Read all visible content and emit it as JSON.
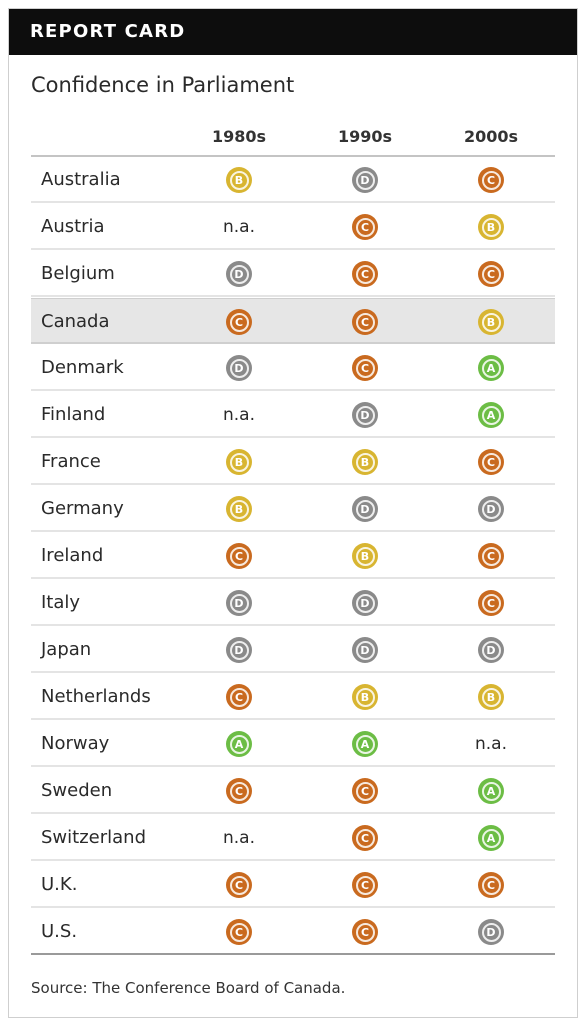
{
  "header": {
    "title": "REPORT CARD"
  },
  "subtitle": "Confidence in Parliament",
  "columns": [
    "1980s",
    "1990s",
    "2000s"
  ],
  "grade_colors": {
    "A": "#6cbd45",
    "B": "#d8b531",
    "C": "#c96a1f",
    "D": "#8a8a8a"
  },
  "highlight_row": "Canada",
  "rows": [
    {
      "country": "Australia",
      "grades": [
        "B",
        "D",
        "C"
      ]
    },
    {
      "country": "Austria",
      "grades": [
        "n.a.",
        "C",
        "B"
      ]
    },
    {
      "country": "Belgium",
      "grades": [
        "D",
        "C",
        "C"
      ]
    },
    {
      "country": "Canada",
      "grades": [
        "C",
        "C",
        "B"
      ]
    },
    {
      "country": "Denmark",
      "grades": [
        "D",
        "C",
        "A"
      ]
    },
    {
      "country": "Finland",
      "grades": [
        "n.a.",
        "D",
        "A"
      ]
    },
    {
      "country": "France",
      "grades": [
        "B",
        "B",
        "C"
      ]
    },
    {
      "country": "Germany",
      "grades": [
        "B",
        "D",
        "D"
      ]
    },
    {
      "country": "Ireland",
      "grades": [
        "C",
        "B",
        "C"
      ]
    },
    {
      "country": "Italy",
      "grades": [
        "D",
        "D",
        "C"
      ]
    },
    {
      "country": "Japan",
      "grades": [
        "D",
        "D",
        "D"
      ]
    },
    {
      "country": "Netherlands",
      "grades": [
        "C",
        "B",
        "B"
      ]
    },
    {
      "country": "Norway",
      "grades": [
        "A",
        "A",
        "n.a."
      ]
    },
    {
      "country": "Sweden",
      "grades": [
        "C",
        "C",
        "A"
      ]
    },
    {
      "country": "Switzerland",
      "grades": [
        "n.a.",
        "C",
        "A"
      ]
    },
    {
      "country": "U.K.",
      "grades": [
        "C",
        "C",
        "C"
      ]
    },
    {
      "country": "U.S.",
      "grades": [
        "C",
        "C",
        "D"
      ]
    }
  ],
  "source": "Source: The Conference Board of Canada."
}
